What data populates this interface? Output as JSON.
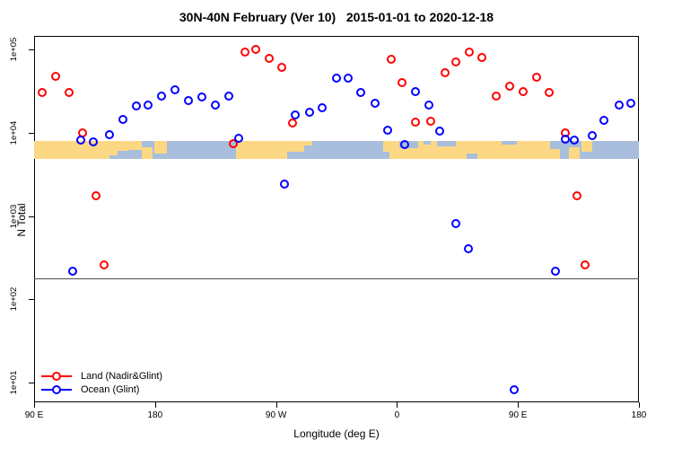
{
  "title": "30N-40N February (Ver 10)   2015-01-01 to 2020-12-18",
  "axes": {
    "x": {
      "label": "Longitude (deg E)",
      "min": 90,
      "max": 540,
      "ticks": [
        {
          "lon": 90,
          "label": "90 E"
        },
        {
          "lon": 180,
          "label": "180"
        },
        {
          "lon": 270,
          "label": "90 W"
        },
        {
          "lon": 360,
          "label": "0"
        },
        {
          "lon": 450,
          "label": "90 E"
        },
        {
          "lon": 540,
          "label": "180"
        }
      ]
    },
    "y": {
      "label": "N Total",
      "scale": "log10",
      "min_exp": 1,
      "max_exp": 5,
      "ticks": [
        {
          "exp": 1,
          "label": "1e+01"
        },
        {
          "exp": 2,
          "label": "1e+02"
        },
        {
          "exp": 3,
          "label": "1e+03"
        },
        {
          "exp": 4,
          "label": "1e+04"
        },
        {
          "exp": 5,
          "label": "1e+05"
        }
      ]
    }
  },
  "legend": [
    {
      "label": "Land (Nadir&Glint)",
      "color": "#ff0000"
    },
    {
      "label": "Ocean (Glint)",
      "color": "#0000ff"
    }
  ],
  "colors": {
    "land_series": "#ff0000",
    "ocean_series": "#0000ff",
    "map_land": "#fcd885",
    "map_ocean": "#a8bedc",
    "ref_line": "#4d4d4d"
  },
  "chart_data": {
    "type": "scatter",
    "point_format": "[longitude_axis_deg, n_total]",
    "series": [
      {
        "name": "Land (Nadir&Glint)",
        "color": "#ff0000",
        "points": [
          [
            96,
            30500
          ],
          [
            106,
            47500
          ],
          [
            116,
            30500
          ],
          [
            126,
            10000
          ],
          [
            136,
            1730
          ],
          [
            142,
            256
          ],
          [
            238,
            7400
          ],
          [
            247,
            93000
          ],
          [
            255,
            100000
          ],
          [
            265,
            78000
          ],
          [
            274,
            61000
          ],
          [
            282,
            13100
          ],
          [
            356,
            76000
          ],
          [
            364,
            40000
          ],
          [
            374,
            13500
          ],
          [
            385,
            13800
          ],
          [
            396,
            52500
          ],
          [
            404,
            70000
          ],
          [
            414,
            93000
          ],
          [
            423,
            80000
          ],
          [
            434,
            27600
          ],
          [
            444,
            36200
          ],
          [
            454,
            31200
          ],
          [
            464,
            46400
          ],
          [
            473,
            30500
          ],
          [
            485,
            10000
          ],
          [
            494,
            1770
          ],
          [
            500,
            256
          ]
        ]
      },
      {
        "name": "Ocean (Glint)",
        "color": "#0000ff",
        "points": [
          [
            119,
            215
          ],
          [
            125,
            8200
          ],
          [
            134,
            7800
          ],
          [
            146,
            9500
          ],
          [
            156,
            14500
          ],
          [
            166,
            21000
          ],
          [
            175,
            21500
          ],
          [
            185,
            27600
          ],
          [
            195,
            32800
          ],
          [
            205,
            24400
          ],
          [
            215,
            26900
          ],
          [
            225,
            21500
          ],
          [
            235,
            27600
          ],
          [
            242,
            8600
          ],
          [
            276,
            2440
          ],
          [
            284,
            16400
          ],
          [
            295,
            17700
          ],
          [
            304,
            20000
          ],
          [
            315,
            45300
          ],
          [
            324,
            45300
          ],
          [
            333,
            30500
          ],
          [
            344,
            22600
          ],
          [
            353,
            10800
          ],
          [
            366,
            7250
          ],
          [
            374,
            31200
          ],
          [
            384,
            21500
          ],
          [
            392,
            10500
          ],
          [
            404,
            800
          ],
          [
            413,
            400
          ],
          [
            447,
            8.2
          ],
          [
            478,
            215
          ],
          [
            485,
            8400
          ],
          [
            492,
            8200
          ],
          [
            505,
            9300
          ],
          [
            514,
            14200
          ],
          [
            525,
            21500
          ],
          [
            534,
            22600
          ]
        ]
      }
    ],
    "ref_line_n": 180,
    "map_band": {
      "n_top": 8000,
      "n_bottom": 4800,
      "land_segments": [
        {
          "lon1": 90,
          "lon2": 160,
          "f1": 0,
          "f2": 1
        },
        {
          "lon1": 160,
          "lon2": 170,
          "f1": 0,
          "f2": 0.5
        },
        {
          "lon1": 170,
          "lon2": 178,
          "f1": 0.35,
          "f2": 1
        },
        {
          "lon1": 179.5,
          "lon2": 189,
          "f1": 0,
          "f2": 0.7
        },
        {
          "lon1": 240,
          "lon2": 278,
          "f1": 0,
          "f2": 1
        },
        {
          "lon1": 278,
          "lon2": 291,
          "f1": 0,
          "f2": 0.6
        },
        {
          "lon1": 291,
          "lon2": 297,
          "f1": 0,
          "f2": 0.25
        },
        {
          "lon1": 350,
          "lon2": 474,
          "f1": 0,
          "f2": 1
        },
        {
          "lon1": 474,
          "lon2": 481,
          "f1": 0.45,
          "f2": 1
        },
        {
          "lon1": 488,
          "lon2": 496,
          "f1": 0.35,
          "f2": 1
        },
        {
          "lon1": 497,
          "lon2": 505,
          "f1": 0,
          "f2": 0.6
        }
      ],
      "ocean_notches": [
        {
          "lon1": 146,
          "lon2": 152,
          "f1": 0.8,
          "f2": 1
        },
        {
          "lon1": 152,
          "lon2": 160,
          "f1": 0.55,
          "f2": 1
        },
        {
          "lon1": 362,
          "lon2": 376,
          "f1": 0,
          "f2": 0.38
        },
        {
          "lon1": 380,
          "lon2": 385,
          "f1": 0,
          "f2": 0.2
        },
        {
          "lon1": 390,
          "lon2": 404,
          "f1": 0,
          "f2": 0.3
        },
        {
          "lon1": 438,
          "lon2": 449,
          "f1": 0,
          "f2": 0.22
        },
        {
          "lon1": 350,
          "lon2": 354.5,
          "f1": 0.6,
          "f2": 1
        },
        {
          "lon1": 412,
          "lon2": 420,
          "f1": 0.7,
          "f2": 1
        }
      ]
    }
  }
}
